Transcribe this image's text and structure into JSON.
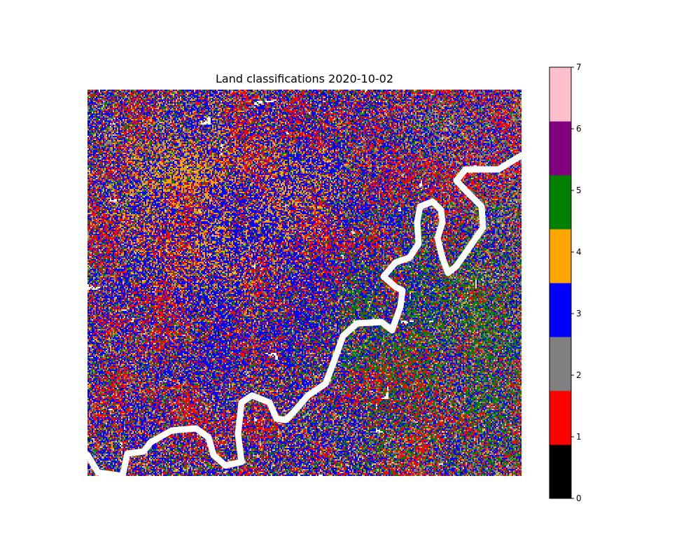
{
  "chart_data": {
    "type": "heatmap",
    "title": "Land classifications 2020-10-02",
    "xlabel": "",
    "ylabel": "",
    "axes_visible": false,
    "colorbar": {
      "placement": "right",
      "range": [
        0,
        7
      ],
      "ticks": [
        "0",
        "1",
        "2",
        "3",
        "4",
        "5",
        "6",
        "7"
      ],
      "classes": [
        {
          "value": 0,
          "color": "#000000"
        },
        {
          "value": 1,
          "color": "#ff0000"
        },
        {
          "value": 2,
          "color": "#808080"
        },
        {
          "value": 3,
          "color": "#0000ff"
        },
        {
          "value": 4,
          "color": "#ffa500"
        },
        {
          "value": 5,
          "color": "#008000"
        },
        {
          "value": 6,
          "color": "#800080"
        },
        {
          "value": 7,
          "color": "#ffc0cb"
        }
      ]
    },
    "map": {
      "background_class": 1,
      "nodata_color": "#ffffff",
      "class_weights": [
        0.01,
        0.2,
        0.22,
        0.28,
        0.1,
        0.16,
        0.005,
        0.025
      ],
      "regions": [
        {
          "class": 4,
          "description": "orange dominant",
          "area": "upper-left"
        },
        {
          "class": 3,
          "description": "blue dominant",
          "area": "center and left"
        },
        {
          "class": 5,
          "description": "green dominant",
          "area": "lower-right"
        },
        {
          "class": 2,
          "description": "gray dominant",
          "area": "right"
        }
      ]
    }
  }
}
